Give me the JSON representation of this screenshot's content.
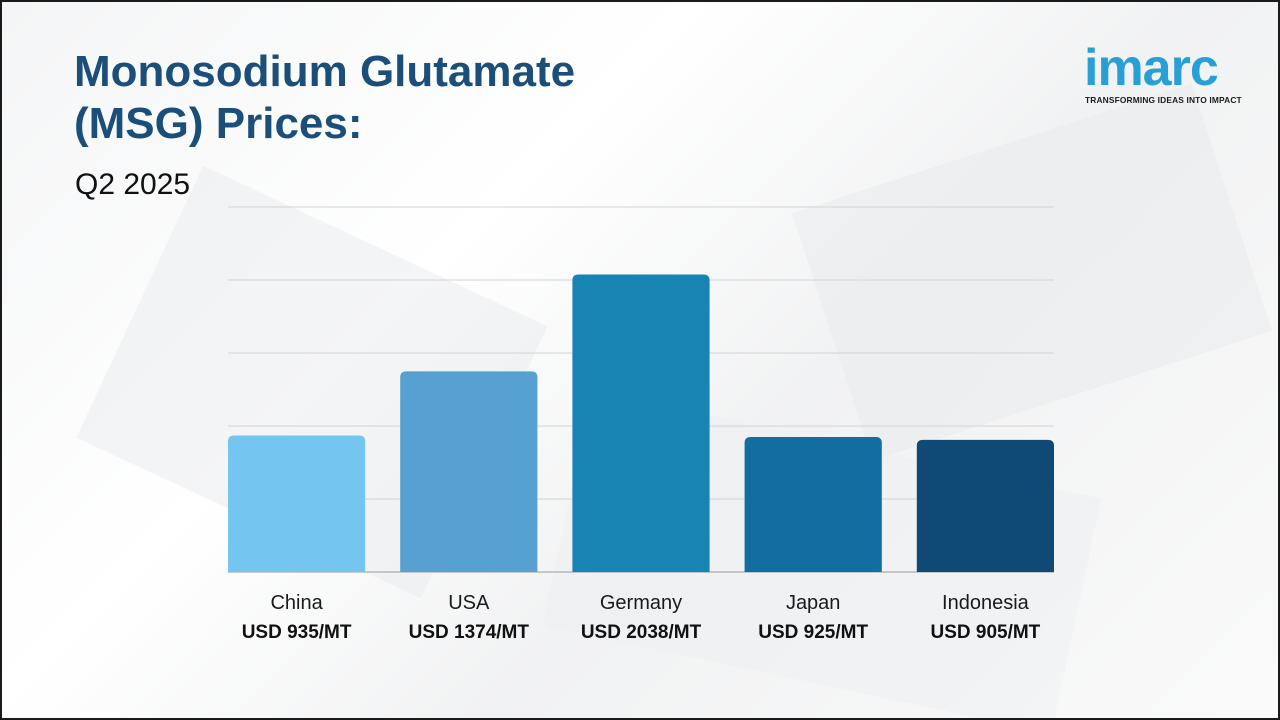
{
  "title_line1": "Monosodium Glutamate",
  "title_line2": "(MSG) Prices:",
  "subtitle": "Q2 2025",
  "logo": {
    "wordmark": "imarc",
    "tagline": "TRANSFORMING IDEAS INTO IMPACT",
    "accent": "#2a9fd6"
  },
  "chart_data": {
    "type": "bar",
    "title": "Monosodium Glutamate (MSG) Prices:",
    "subtitle": "Q2 2025",
    "categories": [
      "China",
      "USA",
      "Germany",
      "Japan",
      "Indonesia"
    ],
    "values": [
      935,
      1374,
      2038,
      925,
      905
    ],
    "value_labels": [
      "USD 935/MT",
      "USD 1374/MT",
      "USD 2038/MT",
      "USD 925/MT",
      "USD 905/MT"
    ],
    "colors": [
      "#74c5ef",
      "#57a0d2",
      "#1884b4",
      "#126ea1",
      "#0f4a77"
    ],
    "xlabel": "",
    "ylabel": "",
    "ylim": [
      0,
      2500
    ],
    "grid": true,
    "legend": "none"
  }
}
